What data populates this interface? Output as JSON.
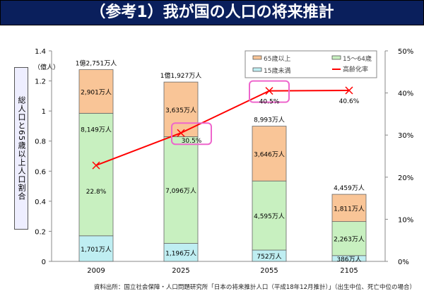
{
  "title": "（参考1）我が国の人口の将来推計",
  "chart_data": {
    "type": "bar",
    "stacked": true,
    "categories": [
      "2009",
      "2025",
      "2055",
      "2105"
    ],
    "ylabel": "総人口と65歳以上人口割合",
    "yunit": "（億人）",
    "ylim": [
      0,
      1.4
    ],
    "yticks": [
      "0",
      "0.2",
      "0.4",
      "0.6",
      "0.8",
      "1",
      "1.2",
      "1.4"
    ],
    "y2lim": [
      0,
      50
    ],
    "y2ticks": [
      "0%",
      "10%",
      "20%",
      "30%",
      "40%",
      "50%"
    ],
    "series": [
      {
        "name": "15歳未満",
        "color": "#bfeef2",
        "values": [
          0.1701,
          0.1196,
          0.0752,
          0.0386
        ],
        "labels": [
          "1,701万人",
          "1,196万人",
          "752万人",
          "386万人"
        ]
      },
      {
        "name": "15～64歳",
        "color": "#c8f0c0",
        "values": [
          0.8149,
          0.7096,
          0.4595,
          0.2263
        ],
        "labels": [
          "8,149万人",
          "7,096万人",
          "4,595万人",
          "2,263万人"
        ]
      },
      {
        "name": "65歳以上",
        "color": "#f9c597",
        "values": [
          0.2901,
          0.3635,
          0.3646,
          0.1811
        ],
        "labels": [
          "2,901万人",
          "3,635万人",
          "3,646万人",
          "1,811万人"
        ]
      }
    ],
    "totals": [
      1.2751,
      1.1927,
      0.8993,
      0.4459
    ],
    "total_labels": [
      "1億2,751万人",
      "1億1,927万人",
      "8,993万人",
      "4,459万人"
    ],
    "line": {
      "name": "高齢化率",
      "color": "#ff0000",
      "values": [
        22.8,
        30.5,
        40.5,
        40.6
      ],
      "labels": [
        "22.8%",
        "30.5%",
        "40.5%",
        "40.6%"
      ]
    },
    "highlighted": [
      "30.5%",
      "40.5%"
    ],
    "legend": {
      "placement": "top-right",
      "order": [
        "65歳以上",
        "15～64歳",
        "15歳未満",
        "高齢化率"
      ]
    }
  },
  "source": "資料出所：国立社会保障・人口問題研究所「日本の将来推計人口（平成18年12月推計）」（出生中位、死亡中位の場合）"
}
